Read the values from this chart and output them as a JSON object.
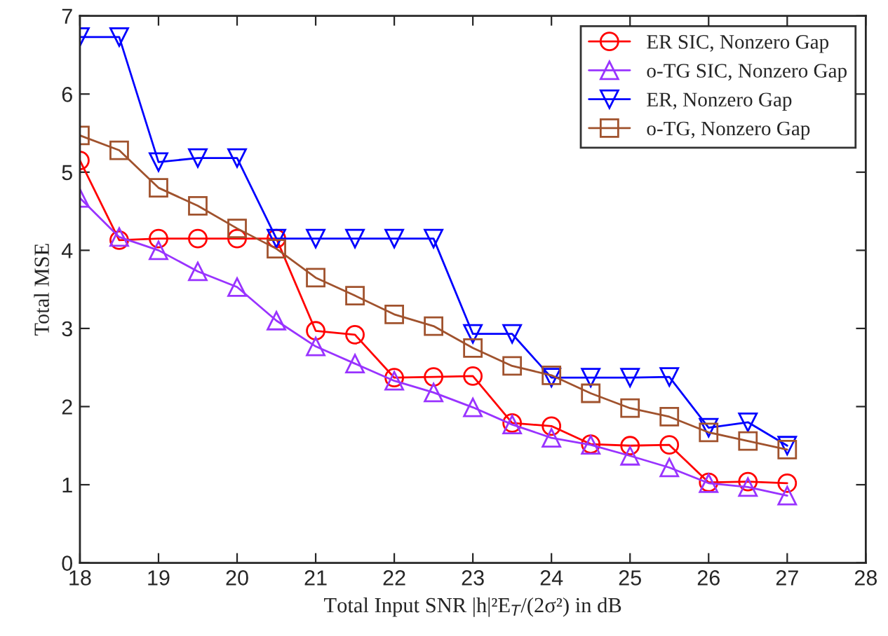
{
  "chart_data": {
    "type": "line",
    "xlabel": "Total Input SNR |h|²E$_{T}$/(2σ²) in dB",
    "ylabel": "Total MSE",
    "x": [
      18,
      18.5,
      19,
      19.5,
      20,
      20.5,
      21,
      21.5,
      22,
      22.5,
      23,
      23.5,
      24,
      24.5,
      25,
      25.5,
      26,
      26.5,
      27
    ],
    "series": [
      {
        "name": "ER SIC, Nonzero Gap",
        "color": "#ff0000",
        "marker": "circle",
        "values": [
          5.15,
          4.13,
          4.15,
          4.15,
          4.15,
          4.15,
          2.97,
          2.92,
          2.37,
          2.38,
          2.39,
          1.79,
          1.75,
          1.52,
          1.5,
          1.51,
          1.03,
          1.04,
          1.02
        ]
      },
      {
        "name": "o-TG SIC, Nonzero Gap",
        "color": "#9933ff",
        "marker": "triangle",
        "values": [
          4.67,
          4.17,
          4.0,
          3.73,
          3.53,
          3.1,
          2.77,
          2.55,
          2.33,
          2.18,
          1.99,
          1.77,
          1.6,
          1.51,
          1.37,
          1.22,
          1.02,
          0.97,
          0.86
        ]
      },
      {
        "name": "ER, Nonzero Gap",
        "color": "#0000ff",
        "marker": "triangle_down",
        "values": [
          6.73,
          6.73,
          5.13,
          5.18,
          5.18,
          4.15,
          4.15,
          4.15,
          4.15,
          4.15,
          2.93,
          2.93,
          2.37,
          2.37,
          2.37,
          2.38,
          1.73,
          1.8,
          1.5
        ]
      },
      {
        "name": "o-TG, Nonzero Gap",
        "color": "#a0522d",
        "marker": "square",
        "values": [
          5.47,
          5.28,
          4.8,
          4.57,
          4.28,
          4.02,
          3.65,
          3.42,
          3.18,
          3.03,
          2.75,
          2.52,
          2.4,
          2.17,
          1.98,
          1.87,
          1.67,
          1.56,
          1.45
        ]
      }
    ],
    "xlim": [
      18,
      28
    ],
    "xticks": [
      18,
      19,
      20,
      21,
      22,
      23,
      24,
      25,
      26,
      27,
      28
    ],
    "ylim": [
      0,
      7
    ],
    "yticks": [
      0,
      1,
      2,
      3,
      4,
      5,
      6,
      7
    ],
    "grid": false,
    "legend": "top right",
    "line_style": "solid"
  }
}
